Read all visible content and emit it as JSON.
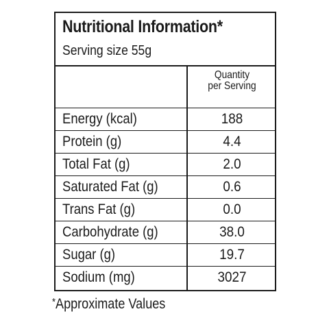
{
  "label": {
    "title": "Nutritional Information*",
    "serving_size": "Serving size 55g",
    "quantity_header_line1": "Quantity",
    "quantity_header_line2": "per Serving",
    "rows": [
      {
        "nutrient": "Energy (kcal)",
        "value": "188"
      },
      {
        "nutrient": "Protein (g)",
        "value": "4.4"
      },
      {
        "nutrient": "Total Fat (g)",
        "value": "2.0"
      },
      {
        "nutrient": "Saturated Fat (g)",
        "value": "0.6"
      },
      {
        "nutrient": "Trans Fat (g)",
        "value": "0.0"
      },
      {
        "nutrient": "Carbohydrate (g)",
        "value": "38.0"
      },
      {
        "nutrient": "Sugar (g)",
        "value": "19.7"
      },
      {
        "nutrient": "Sodium (mg)",
        "value": "3027"
      }
    ],
    "footnote_symbol": "*",
    "footnote_text": "Approximate Values"
  }
}
